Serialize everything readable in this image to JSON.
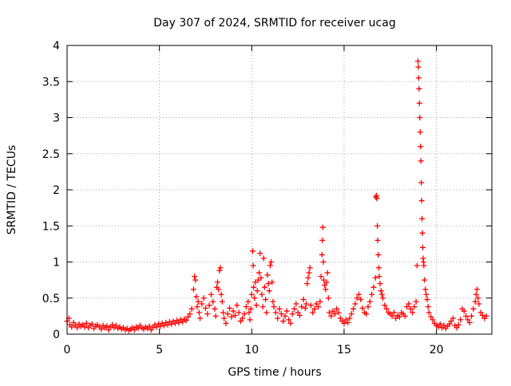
{
  "chart_data": {
    "type": "scatter",
    "title": "Day 307 of 2024, SRMTID for receiver ucag",
    "xlabel": "GPS time / hours",
    "ylabel": "SRMTID / TECUs",
    "xlim": [
      0,
      23
    ],
    "ylim": [
      0,
      4
    ],
    "xticks": [
      0,
      5,
      10,
      15,
      20
    ],
    "xtick_labels": [
      "0",
      "5",
      "10",
      "15",
      "20"
    ],
    "yticks": [
      0,
      0.5,
      1,
      1.5,
      2,
      2.5,
      3,
      3.5,
      4
    ],
    "ytick_labels": [
      "0",
      "0.5",
      "1",
      "1.5",
      "2",
      "2.5",
      "3",
      "3.5",
      "4"
    ],
    "grid": true,
    "marker": "+",
    "marker_color": "#ff0000",
    "series": [
      {
        "name": "SRMTID",
        "points": [
          [
            0.0,
            0.18
          ],
          [
            0.1,
            0.22
          ],
          [
            0.15,
            0.13
          ],
          [
            0.25,
            0.1
          ],
          [
            0.35,
            0.16
          ],
          [
            0.45,
            0.12
          ],
          [
            0.55,
            0.09
          ],
          [
            0.65,
            0.14
          ],
          [
            0.75,
            0.11
          ],
          [
            0.85,
            0.13
          ],
          [
            0.95,
            0.1
          ],
          [
            1.05,
            0.15
          ],
          [
            1.15,
            0.09
          ],
          [
            1.25,
            0.12
          ],
          [
            1.35,
            0.14
          ],
          [
            1.45,
            0.08
          ],
          [
            1.55,
            0.11
          ],
          [
            1.65,
            0.13
          ],
          [
            1.75,
            0.1
          ],
          [
            1.85,
            0.07
          ],
          [
            1.95,
            0.12
          ],
          [
            2.05,
            0.09
          ],
          [
            2.15,
            0.11
          ],
          [
            2.25,
            0.06
          ],
          [
            2.35,
            0.1
          ],
          [
            2.45,
            0.13
          ],
          [
            2.55,
            0.09
          ],
          [
            2.65,
            0.12
          ],
          [
            2.75,
            0.08
          ],
          [
            2.85,
            0.1
          ],
          [
            2.95,
            0.07
          ],
          [
            3.05,
            0.09
          ],
          [
            3.15,
            0.06
          ],
          [
            3.25,
            0.08
          ],
          [
            3.35,
            0.05
          ],
          [
            3.45,
            0.07
          ],
          [
            3.55,
            0.09
          ],
          [
            3.65,
            0.06
          ],
          [
            3.75,
            0.1
          ],
          [
            3.85,
            0.08
          ],
          [
            3.95,
            0.12
          ],
          [
            4.05,
            0.09
          ],
          [
            4.15,
            0.07
          ],
          [
            4.25,
            0.1
          ],
          [
            4.35,
            0.08
          ],
          [
            4.45,
            0.11
          ],
          [
            4.55,
            0.06
          ],
          [
            4.65,
            0.09
          ],
          [
            4.75,
            0.13
          ],
          [
            4.85,
            0.1
          ],
          [
            4.95,
            0.14
          ],
          [
            5.05,
            0.11
          ],
          [
            5.15,
            0.15
          ],
          [
            5.25,
            0.12
          ],
          [
            5.35,
            0.16
          ],
          [
            5.45,
            0.13
          ],
          [
            5.55,
            0.17
          ],
          [
            5.65,
            0.14
          ],
          [
            5.75,
            0.18
          ],
          [
            5.85,
            0.15
          ],
          [
            5.95,
            0.19
          ],
          [
            6.05,
            0.16
          ],
          [
            6.15,
            0.2
          ],
          [
            6.25,
            0.17
          ],
          [
            6.35,
            0.21
          ],
          [
            6.45,
            0.19
          ],
          [
            6.55,
            0.24
          ],
          [
            6.65,
            0.28
          ],
          [
            6.75,
            0.35
          ],
          [
            6.85,
            0.62
          ],
          [
            6.9,
            0.8
          ],
          [
            6.95,
            0.75
          ],
          [
            7.0,
            0.52
          ],
          [
            7.05,
            0.38
          ],
          [
            7.1,
            0.45
          ],
          [
            7.15,
            0.3
          ],
          [
            7.2,
            0.22
          ],
          [
            7.3,
            0.42
          ],
          [
            7.4,
            0.5
          ],
          [
            7.5,
            0.36
          ],
          [
            7.6,
            0.28
          ],
          [
            7.7,
            0.4
          ],
          [
            7.8,
            0.55
          ],
          [
            7.9,
            0.45
          ],
          [
            8.0,
            0.35
          ],
          [
            8.05,
            0.25
          ],
          [
            8.1,
            0.65
          ],
          [
            8.15,
            0.72
          ],
          [
            8.2,
            0.62
          ],
          [
            8.25,
            0.88
          ],
          [
            8.3,
            0.92
          ],
          [
            8.35,
            0.55
          ],
          [
            8.4,
            0.45
          ],
          [
            8.45,
            0.3
          ],
          [
            8.5,
            0.22
          ],
          [
            8.6,
            0.15
          ],
          [
            8.7,
            0.28
          ],
          [
            8.8,
            0.36
          ],
          [
            8.9,
            0.24
          ],
          [
            9.0,
            0.32
          ],
          [
            9.1,
            0.26
          ],
          [
            9.2,
            0.4
          ],
          [
            9.3,
            0.3
          ],
          [
            9.4,
            0.18
          ],
          [
            9.5,
            0.22
          ],
          [
            9.6,
            0.28
          ],
          [
            9.7,
            0.38
          ],
          [
            9.8,
            0.45
          ],
          [
            9.85,
            0.3
          ],
          [
            9.9,
            0.2
          ],
          [
            9.95,
            0.35
          ],
          [
            10.0,
            0.55
          ],
          [
            10.05,
            1.15
          ],
          [
            10.08,
            0.95
          ],
          [
            10.1,
            0.65
          ],
          [
            10.15,
            0.5
          ],
          [
            10.2,
            0.72
          ],
          [
            10.25,
            0.4
          ],
          [
            10.3,
            0.6
          ],
          [
            10.35,
            0.75
          ],
          [
            10.4,
            0.85
          ],
          [
            10.45,
            1.12
          ],
          [
            10.5,
            0.78
          ],
          [
            10.55,
            0.55
          ],
          [
            10.6,
            0.38
          ],
          [
            10.65,
            1.05
          ],
          [
            10.7,
            0.65
          ],
          [
            10.75,
            0.48
          ],
          [
            10.8,
            0.3
          ],
          [
            10.85,
            0.82
          ],
          [
            10.9,
            0.7
          ],
          [
            10.95,
            0.6
          ],
          [
            11.0,
            0.95
          ],
          [
            11.05,
            1.0
          ],
          [
            11.1,
            0.72
          ],
          [
            11.15,
            0.45
          ],
          [
            11.2,
            0.38
          ],
          [
            11.3,
            0.3
          ],
          [
            11.4,
            0.22
          ],
          [
            11.5,
            0.35
          ],
          [
            11.6,
            0.28
          ],
          [
            11.7,
            0.18
          ],
          [
            11.8,
            0.25
          ],
          [
            11.9,
            0.32
          ],
          [
            12.0,
            0.2
          ],
          [
            12.1,
            0.15
          ],
          [
            12.2,
            0.28
          ],
          [
            12.3,
            0.35
          ],
          [
            12.4,
            0.42
          ],
          [
            12.5,
            0.3
          ],
          [
            12.6,
            0.26
          ],
          [
            12.7,
            0.38
          ],
          [
            12.8,
            0.48
          ],
          [
            12.9,
            0.36
          ],
          [
            12.95,
            0.42
          ],
          [
            13.0,
            0.7
          ],
          [
            13.05,
            0.78
          ],
          [
            13.1,
            0.85
          ],
          [
            13.15,
            0.92
          ],
          [
            13.2,
            0.4
          ],
          [
            13.3,
            0.3
          ],
          [
            13.4,
            0.35
          ],
          [
            13.5,
            0.42
          ],
          [
            13.6,
            0.38
          ],
          [
            13.7,
            0.45
          ],
          [
            13.75,
            0.8
          ],
          [
            13.8,
            1.1
          ],
          [
            13.82,
            1.3
          ],
          [
            13.85,
            1.48
          ],
          [
            13.88,
            1.0
          ],
          [
            13.9,
            0.75
          ],
          [
            13.95,
            0.68
          ],
          [
            14.0,
            0.62
          ],
          [
            14.05,
            0.72
          ],
          [
            14.1,
            0.85
          ],
          [
            14.15,
            0.5
          ],
          [
            14.2,
            0.3
          ],
          [
            14.3,
            0.25
          ],
          [
            14.4,
            0.32
          ],
          [
            14.5,
            0.28
          ],
          [
            14.6,
            0.35
          ],
          [
            14.7,
            0.3
          ],
          [
            14.8,
            0.22
          ],
          [
            14.9,
            0.18
          ],
          [
            15.0,
            0.15
          ],
          [
            15.1,
            0.2
          ],
          [
            15.2,
            0.16
          ],
          [
            15.3,
            0.22
          ],
          [
            15.4,
            0.28
          ],
          [
            15.5,
            0.35
          ],
          [
            15.6,
            0.42
          ],
          [
            15.7,
            0.5
          ],
          [
            15.8,
            0.55
          ],
          [
            15.9,
            0.48
          ],
          [
            16.0,
            0.36
          ],
          [
            16.1,
            0.3
          ],
          [
            16.2,
            0.28
          ],
          [
            16.3,
            0.38
          ],
          [
            16.4,
            0.45
          ],
          [
            16.5,
            0.55
          ],
          [
            16.6,
            0.65
          ],
          [
            16.7,
            0.78
          ],
          [
            16.72,
            1.9
          ],
          [
            16.75,
            1.92
          ],
          [
            16.78,
            1.88
          ],
          [
            16.8,
            1.5
          ],
          [
            16.82,
            1.3
          ],
          [
            16.85,
            1.1
          ],
          [
            16.88,
            0.92
          ],
          [
            16.9,
            0.8
          ],
          [
            16.95,
            0.7
          ],
          [
            17.0,
            0.6
          ],
          [
            17.05,
            0.55
          ],
          [
            17.1,
            0.5
          ],
          [
            17.2,
            0.4
          ],
          [
            17.3,
            0.35
          ],
          [
            17.4,
            0.3
          ],
          [
            17.5,
            0.28
          ],
          [
            17.6,
            0.25
          ],
          [
            17.7,
            0.3
          ],
          [
            17.8,
            0.22
          ],
          [
            17.9,
            0.26
          ],
          [
            18.0,
            0.24
          ],
          [
            18.1,
            0.3
          ],
          [
            18.2,
            0.28
          ],
          [
            18.3,
            0.25
          ],
          [
            18.4,
            0.38
          ],
          [
            18.5,
            0.42
          ],
          [
            18.6,
            0.35
          ],
          [
            18.7,
            0.3
          ],
          [
            18.8,
            0.38
          ],
          [
            18.9,
            0.45
          ],
          [
            18.95,
            0.95
          ],
          [
            19.0,
            3.78
          ],
          [
            19.02,
            3.7
          ],
          [
            19.04,
            3.55
          ],
          [
            19.06,
            3.4
          ],
          [
            19.08,
            3.2
          ],
          [
            19.1,
            3.0
          ],
          [
            19.12,
            2.8
          ],
          [
            19.14,
            2.6
          ],
          [
            19.16,
            2.4
          ],
          [
            19.18,
            2.1
          ],
          [
            19.2,
            1.85
          ],
          [
            19.22,
            1.6
          ],
          [
            19.24,
            1.4
          ],
          [
            19.26,
            1.2
          ],
          [
            19.28,
            1.05
          ],
          [
            19.3,
            1.0
          ],
          [
            19.32,
            0.95
          ],
          [
            19.35,
            0.75
          ],
          [
            19.4,
            0.62
          ],
          [
            19.45,
            0.55
          ],
          [
            19.5,
            0.48
          ],
          [
            19.55,
            0.38
          ],
          [
            19.6,
            0.3
          ],
          [
            19.7,
            0.24
          ],
          [
            19.8,
            0.2
          ],
          [
            19.9,
            0.15
          ],
          [
            20.0,
            0.12
          ],
          [
            20.1,
            0.1
          ],
          [
            20.2,
            0.14
          ],
          [
            20.3,
            0.09
          ],
          [
            20.4,
            0.12
          ],
          [
            20.5,
            0.08
          ],
          [
            20.6,
            0.11
          ],
          [
            20.7,
            0.14
          ],
          [
            20.8,
            0.18
          ],
          [
            20.9,
            0.22
          ],
          [
            21.0,
            0.12
          ],
          [
            21.1,
            0.09
          ],
          [
            21.2,
            0.13
          ],
          [
            21.3,
            0.2
          ],
          [
            21.4,
            0.35
          ],
          [
            21.5,
            0.32
          ],
          [
            21.6,
            0.25
          ],
          [
            21.7,
            0.2
          ],
          [
            21.8,
            0.16
          ],
          [
            21.9,
            0.25
          ],
          [
            22.0,
            0.35
          ],
          [
            22.1,
            0.45
          ],
          [
            22.15,
            0.55
          ],
          [
            22.2,
            0.62
          ],
          [
            22.25,
            0.5
          ],
          [
            22.3,
            0.42
          ],
          [
            22.4,
            0.3
          ],
          [
            22.5,
            0.26
          ],
          [
            22.6,
            0.22
          ],
          [
            22.7,
            0.25
          ]
        ]
      }
    ]
  }
}
